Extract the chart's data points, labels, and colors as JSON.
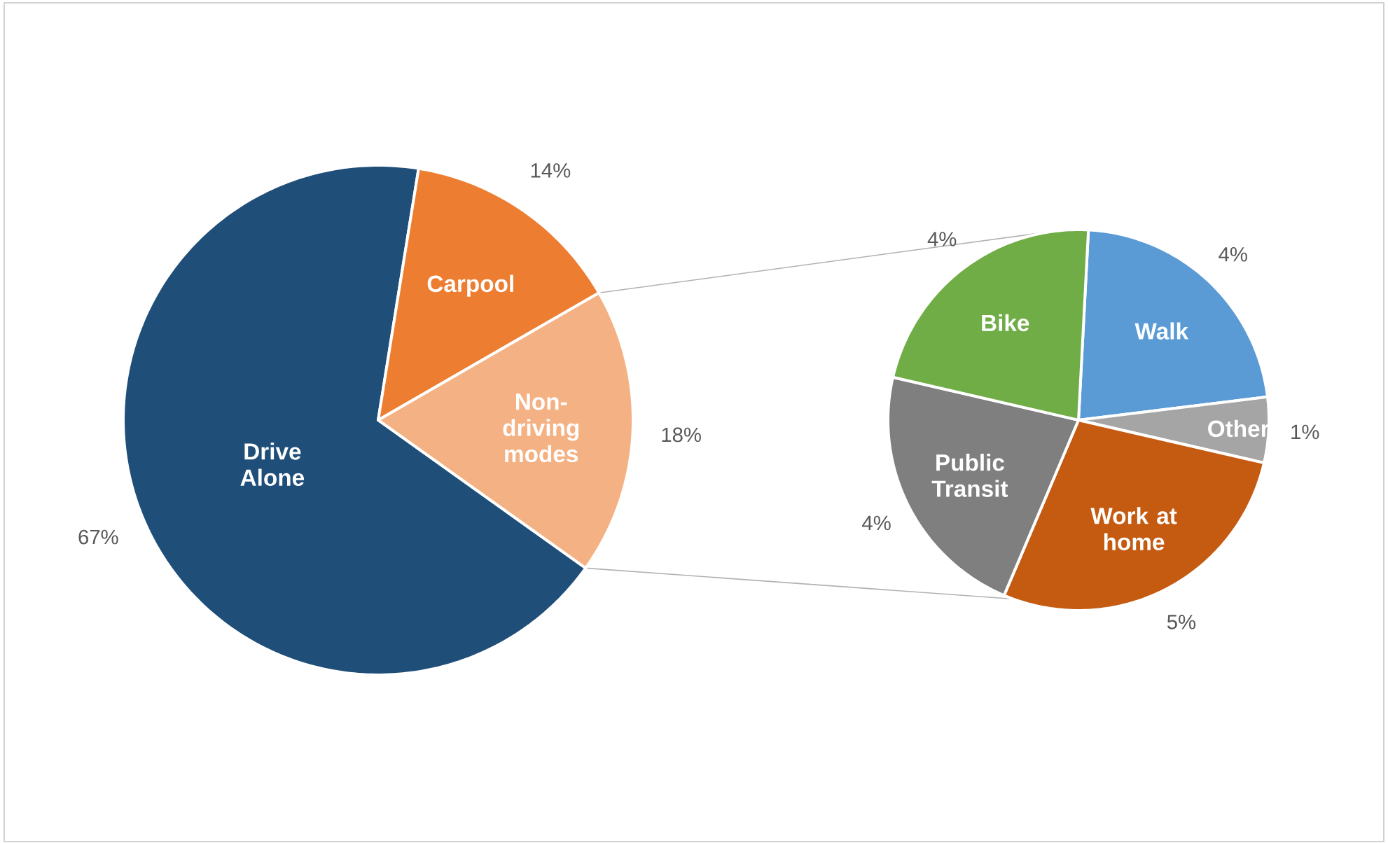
{
  "chart_data": [
    {
      "type": "pie",
      "categories": [
        "Drive Alone",
        "Carpool",
        "Non-driving modes"
      ],
      "values": [
        67,
        14,
        18
      ],
      "colors": [
        "#1f4e79",
        "#ed7d31",
        "#f4b183"
      ],
      "value_labels": [
        "67%",
        "14%",
        "18%"
      ]
    },
    {
      "type": "pie",
      "categories": [
        "Walk",
        "Other",
        "Work at home",
        "Public Transit",
        "Bike"
      ],
      "values": [
        4,
        1,
        5,
        4,
        4
      ],
      "colors": [
        "#5b9bd5",
        "#a5a5a5",
        "#c55a11",
        "#7f7f7f",
        "#70ad47"
      ],
      "value_labels": [
        "4%",
        "1%",
        "5%",
        "4%",
        "4%"
      ]
    }
  ]
}
